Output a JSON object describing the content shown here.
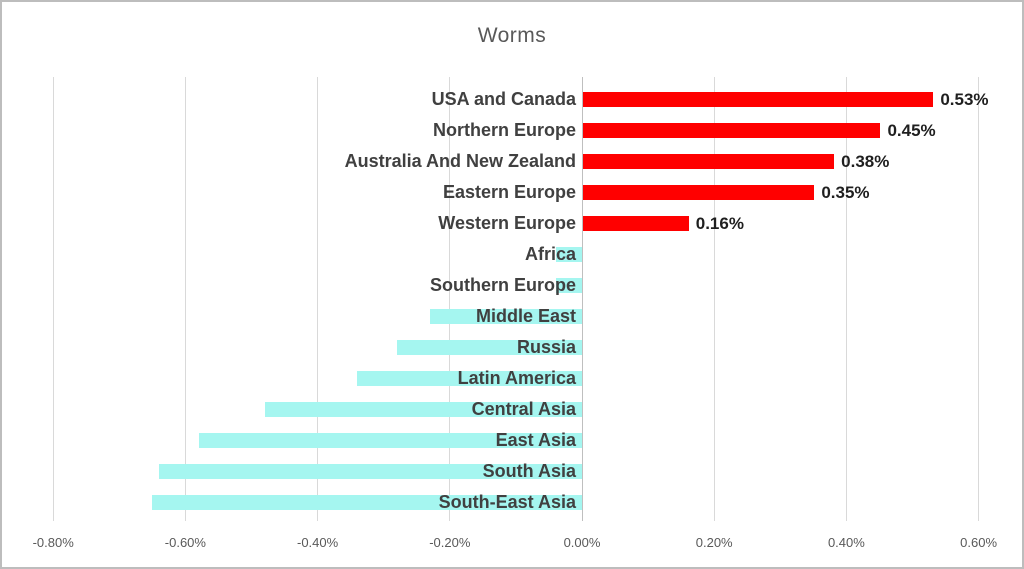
{
  "figure": {
    "background": "#FFFFFF",
    "border_color": "#BDBDBD"
  },
  "chart_data": {
    "type": "bar",
    "orientation": "horizontal",
    "title": "Worms",
    "categories": [
      "USA and Canada",
      "Northern Europe",
      "Australia And New Zealand",
      "Eastern Europe",
      "Western Europe",
      "Africa",
      "Southern Europe",
      "Middle East",
      "Russia",
      "Latin America",
      "Central Asia",
      "East Asia",
      "South Asia",
      "South-East Asia"
    ],
    "values_pct": [
      0.53,
      0.45,
      0.38,
      0.35,
      0.16,
      -0.04,
      -0.04,
      -0.23,
      -0.28,
      -0.34,
      -0.48,
      -0.58,
      -0.64,
      -0.65
    ],
    "data_labels": [
      "0.53%",
      "0.45%",
      "0.38%",
      "0.35%",
      "0.16%",
      "",
      "",
      "",
      "",
      "",
      "",
      "",
      "",
      ""
    ],
    "xlim_pct": [
      -0.8,
      0.6
    ],
    "x_tick_values": [
      -0.8,
      -0.6,
      -0.4,
      -0.2,
      0,
      0.2,
      0.4,
      0.6
    ],
    "x_tick_labels": [
      "-0.80%",
      "-0.60%",
      "-0.40%",
      "-0.20%",
      "0.00%",
      "0.20%",
      "0.40%",
      "0.60%"
    ],
    "grid": true,
    "legend": "none",
    "colors": {
      "positive_bar": "#FF0000",
      "negative_bar": "#A5F6F0",
      "gridline": "#D9D9D9",
      "zero_line": "#BFBFBF",
      "title_text": "#595959",
      "category_text": "#404040",
      "value_text": "#1F1F1F",
      "tick_text": "#595959"
    }
  }
}
